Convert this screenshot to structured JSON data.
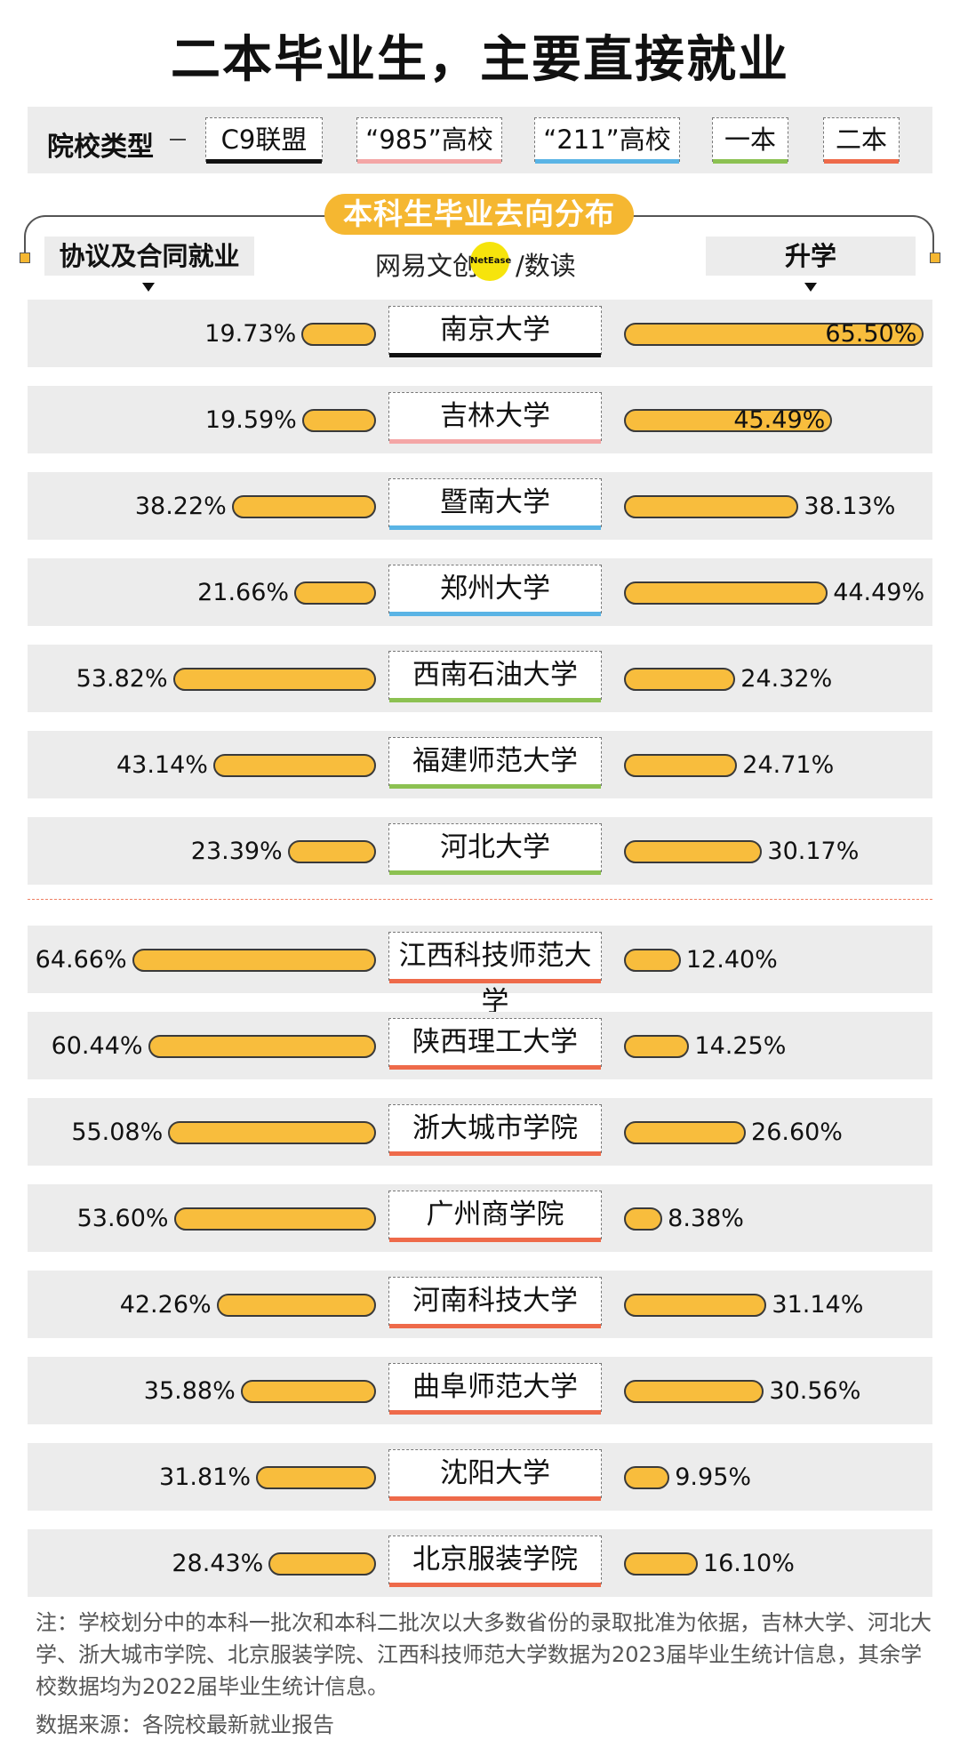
{
  "title": "二本毕业生，主要直接就业",
  "legend": {
    "label": "院校类型",
    "types": [
      {
        "label": "C9联盟",
        "color": "#111111"
      },
      {
        "label": "“985”高校",
        "color": "#f4a6a6"
      },
      {
        "label": "“211”高校",
        "color": "#5ab4e5"
      },
      {
        "label": "一本",
        "color": "#8cc152"
      },
      {
        "label": "二本",
        "color": "#ee6a4a"
      }
    ]
  },
  "logo": {
    "left": "网易文创",
    "badge": "NetEase",
    "right": "/数读"
  },
  "chart_data": {
    "type": "bar",
    "title": "本科生毕业去向分布",
    "left_label": "协议及合同就业",
    "right_label": "升学",
    "series": [
      {
        "name": "协议及合同就业",
        "values": [
          19.73,
          19.59,
          38.22,
          21.66,
          53.82,
          43.14,
          23.39,
          64.66,
          60.44,
          55.08,
          53.6,
          42.26,
          35.88,
          31.81,
          28.43
        ]
      },
      {
        "name": "升学",
        "values": [
          65.5,
          45.49,
          38.13,
          44.49,
          24.32,
          24.71,
          30.17,
          12.4,
          14.25,
          26.6,
          8.38,
          31.14,
          30.56,
          9.95,
          16.1
        ]
      }
    ],
    "categories": [
      "南京大学",
      "吉林大学",
      "暨南大学",
      "郑州大学",
      "西南石油大学",
      "福建师范大学",
      "河北大学",
      "江西科技师范大学",
      "陕西理工大学",
      "浙大城市学院",
      "广州商学院",
      "河南科技大学",
      "曲阜师范大学",
      "沈阳大学",
      "北京服装学院"
    ],
    "types": [
      0,
      1,
      2,
      2,
      3,
      3,
      3,
      4,
      4,
      4,
      4,
      4,
      4,
      4,
      4
    ],
    "left_labels": [
      "19.73%",
      "19.59%",
      "38.22%",
      "21.66%",
      "53.82%",
      "43.14%",
      "23.39%",
      "64.66%",
      "60.44%",
      "55.08%",
      "53.60%",
      "42.26%",
      "35.88%",
      "31.81%",
      "28.43%"
    ],
    "right_labels": [
      "65.50%",
      "45.49%",
      "38.13%",
      "44.49%",
      "24.32%",
      "24.71%",
      "30.17%",
      "12.40%",
      "14.25%",
      "26.60%",
      "8.38%",
      "31.14%",
      "30.56%",
      "9.95%",
      "16.10%"
    ]
  },
  "note": "注：学校划分中的本科一批次和本科二批次以大多数省份的录取批准为依据，吉林大学、河北大学、浙大城市学院、北京服装学院、江西科技师范大学数据为2023届毕业生统计信息，其余学校数据均为2022届毕业生统计信息。",
  "source": "数据来源：各院校最新就业报告"
}
